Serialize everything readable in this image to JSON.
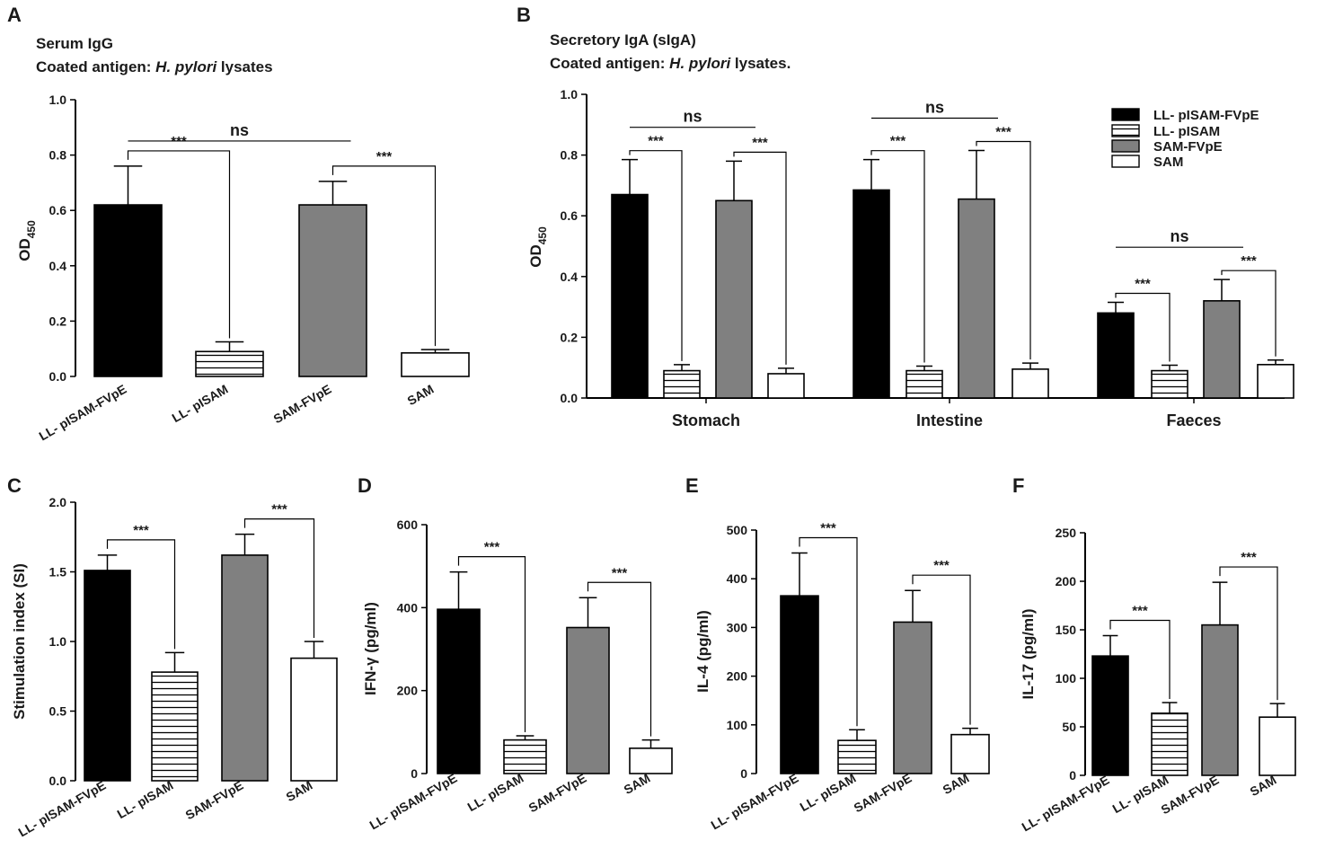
{
  "colors": {
    "LL- pISAM-FVpE": "#000000",
    "LL- pISAM": "hatch",
    "SAM-FVpE": "#808080",
    "SAM": "#ffffff"
  },
  "chart_data": [
    {
      "id": "A",
      "panel_label": "A",
      "type": "bar",
      "title_line1": "Serum IgG",
      "title_line2_prefix": "Coated antigen: ",
      "title_line2_italic": "H. pylori",
      "title_line2_suffix": " lysates",
      "ylabel_main": "OD",
      "ylabel_sub": "450",
      "ylim": [
        0,
        1.0
      ],
      "yticks": [
        "0.0",
        "0.2",
        "0.4",
        "0.6",
        "0.8",
        "1.0"
      ],
      "categories": [
        "LL- pISAM-FVpE",
        "LL- pISAM",
        "SAM-FVpE",
        "SAM"
      ],
      "values": [
        0.62,
        0.09,
        0.62,
        0.085
      ],
      "errors": [
        0.14,
        0.035,
        0.085,
        0.012
      ],
      "significance": [
        {
          "from": 0,
          "to": 1,
          "label": "***"
        },
        {
          "from": 2,
          "to": 3,
          "label": "***"
        },
        {
          "from": 0,
          "to": 2,
          "label": "ns"
        }
      ]
    },
    {
      "id": "B",
      "panel_label": "B",
      "type": "bar",
      "title_line1": "Secretory IgA (sIgA)",
      "title_line2_prefix": "Coated antigen: ",
      "title_line2_italic": "H. pylori",
      "title_line2_suffix": " lysates.",
      "ylabel_main": "OD",
      "ylabel_sub": "450",
      "ylim": [
        0,
        1.0
      ],
      "yticks": [
        "0.0",
        "0.2",
        "0.4",
        "0.6",
        "0.8",
        "1.0"
      ],
      "groups": [
        "Stomach",
        "Intestine",
        "Faeces"
      ],
      "series": [
        {
          "name": "LL- pISAM-FVpE",
          "values": [
            0.67,
            0.685,
            0.28
          ],
          "errors": [
            0.115,
            0.1,
            0.035
          ]
        },
        {
          "name": "LL- pISAM",
          "values": [
            0.09,
            0.09,
            0.09
          ],
          "errors": [
            0.02,
            0.015,
            0.018
          ]
        },
        {
          "name": "SAM-FVpE",
          "values": [
            0.65,
            0.655,
            0.32
          ],
          "errors": [
            0.13,
            0.16,
            0.07
          ]
        },
        {
          "name": "SAM",
          "values": [
            0.08,
            0.095,
            0.11
          ],
          "errors": [
            0.018,
            0.02,
            0.015
          ]
        }
      ],
      "legend": [
        "LL- pISAM-FVpE",
        "LL- pISAM",
        "SAM-FVpE",
        "SAM"
      ],
      "significance": [
        {
          "group": 0,
          "from": 0,
          "to": 1,
          "label": "***"
        },
        {
          "group": 0,
          "from": 2,
          "to": 3,
          "label": "***"
        },
        {
          "group": 0,
          "from": 0,
          "to": 2,
          "label": "ns"
        },
        {
          "group": 1,
          "from": 0,
          "to": 1,
          "label": "***"
        },
        {
          "group": 1,
          "from": 2,
          "to": 3,
          "label": "***"
        },
        {
          "group": 1,
          "from": 0,
          "to": 2,
          "label": "ns"
        },
        {
          "group": 2,
          "from": 0,
          "to": 1,
          "label": "***"
        },
        {
          "group": 2,
          "from": 2,
          "to": 3,
          "label": "***"
        },
        {
          "group": 2,
          "from": 0,
          "to": 2,
          "label": "ns"
        }
      ]
    },
    {
      "id": "C",
      "panel_label": "C",
      "type": "bar",
      "ylabel": "Stimulation index (SI)",
      "ylim": [
        0,
        2.0
      ],
      "yticks": [
        "0.0",
        "0.5",
        "1.0",
        "1.5",
        "2.0"
      ],
      "categories": [
        "LL- pISAM-FVpE",
        "LL- pISAM",
        "SAM-FVpE",
        "SAM"
      ],
      "values": [
        1.51,
        0.78,
        1.62,
        0.88
      ],
      "errors": [
        0.11,
        0.14,
        0.15,
        0.12
      ],
      "significance": [
        {
          "from": 0,
          "to": 1,
          "label": "***"
        },
        {
          "from": 2,
          "to": 3,
          "label": "***"
        }
      ]
    },
    {
      "id": "D",
      "panel_label": "D",
      "type": "bar",
      "ylabel": "IFN-γ (pg/ml)",
      "ylim": [
        0,
        600
      ],
      "yticks": [
        "0",
        "200",
        "400",
        "600"
      ],
      "categories": [
        "LL- pISAM-FVpE",
        "LL- pISAM",
        "SAM-FVpE",
        "SAM"
      ],
      "values": [
        396,
        81,
        352,
        61
      ],
      "errors": [
        90,
        10,
        72,
        20
      ],
      "significance": [
        {
          "from": 0,
          "to": 1,
          "label": "***"
        },
        {
          "from": 2,
          "to": 3,
          "label": "***"
        }
      ]
    },
    {
      "id": "E",
      "panel_label": "E",
      "type": "bar",
      "ylabel": "IL-4 (pg/ml)",
      "ylim": [
        0,
        500
      ],
      "yticks": [
        "0",
        "100",
        "200",
        "300",
        "400",
        "500"
      ],
      "categories": [
        "LL- pISAM-FVpE",
        "LL- pISAM",
        "SAM-FVpE",
        "SAM"
      ],
      "values": [
        365,
        68,
        311,
        80
      ],
      "errors": [
        88,
        22,
        65,
        13
      ],
      "significance": [
        {
          "from": 0,
          "to": 1,
          "label": "***"
        },
        {
          "from": 2,
          "to": 3,
          "label": "***"
        }
      ]
    },
    {
      "id": "F",
      "panel_label": "F",
      "type": "bar",
      "ylabel": "IL-17 (pg/ml)",
      "ylim": [
        0,
        250
      ],
      "yticks": [
        "0",
        "50",
        "100",
        "150",
        "200",
        "250"
      ],
      "categories": [
        "LL- pISAM-FVpE",
        "LL- pISAM",
        "SAM-FVpE",
        "SAM"
      ],
      "values": [
        123,
        64,
        155,
        60
      ],
      "errors": [
        21,
        11,
        44,
        14
      ],
      "significance": [
        {
          "from": 0,
          "to": 1,
          "label": "***"
        },
        {
          "from": 2,
          "to": 3,
          "label": "***"
        }
      ]
    }
  ]
}
